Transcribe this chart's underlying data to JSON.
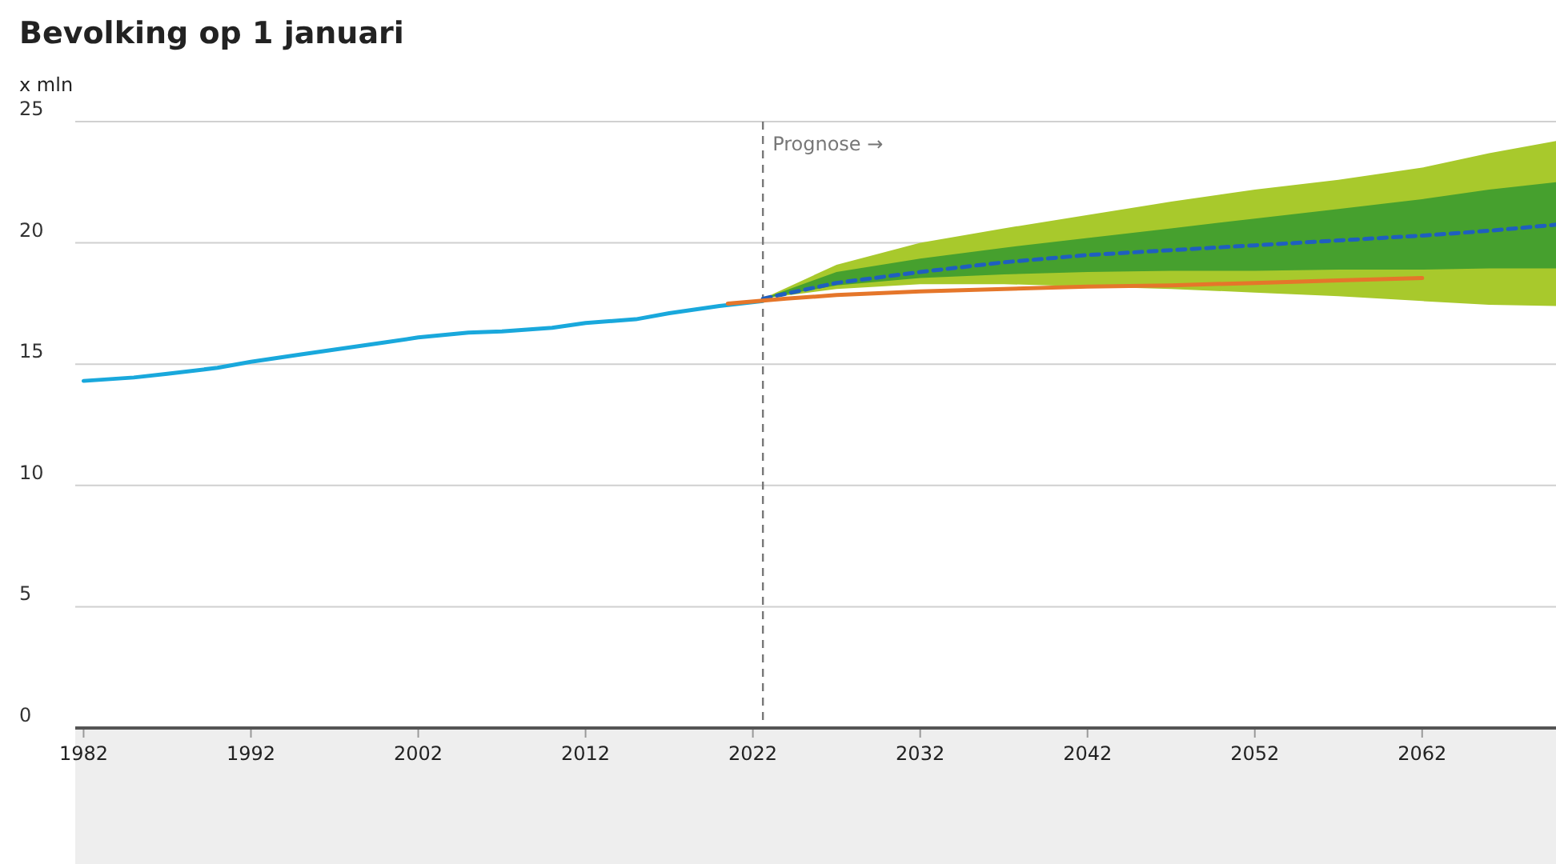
{
  "chart_data": {
    "type": "line",
    "title": "Bevolking op 1 januari",
    "ylabel": "x mln",
    "xlim": [
      1981.5,
      2070
    ],
    "xticks": [
      1982,
      1992,
      2002,
      2012,
      2022,
      2032,
      2042,
      2052,
      2062
    ],
    "ylim": [
      0,
      25
    ],
    "yticks": [
      0,
      5,
      10,
      15,
      20,
      25
    ],
    "grid": "y",
    "ref_lines": [
      {
        "axis": "x",
        "value": 2022.6,
        "label": "Prognose →",
        "color": "#777777",
        "line_style": "dashed"
      }
    ],
    "series": [
      {
        "type": "area",
        "color": "#a8c92c",
        "x": [
          2022.6,
          2027,
          2032,
          2037,
          2042,
          2047,
          2052,
          2057,
          2062,
          2066,
          2070
        ],
        "values": [
          null,
          null,
          null,
          null,
          null,
          null,
          null,
          null,
          null,
          null,
          null
        ],
        "lower": [
          17.7,
          18.1,
          18.3,
          18.3,
          18.2,
          18.1,
          17.95,
          17.8,
          17.6,
          17.45,
          17.4
        ],
        "upper": [
          17.7,
          19.1,
          20.0,
          20.6,
          21.15,
          21.7,
          22.2,
          22.6,
          23.1,
          23.7,
          24.2
        ]
      },
      {
        "type": "line",
        "color": "#1f5fbf",
        "line_style": "dashed",
        "x": [
          2022.6,
          2027,
          2032,
          2037,
          2042,
          2047,
          2052,
          2057,
          2062,
          2066,
          2070
        ],
        "values": [
          17.7,
          18.35,
          18.8,
          19.2,
          19.5,
          19.7,
          19.9,
          20.1,
          20.3,
          20.5,
          20.75
        ],
        "lower": [
          17.7,
          18.25,
          18.55,
          18.7,
          18.8,
          18.85,
          18.85,
          18.9,
          18.9,
          18.95,
          18.95
        ],
        "upper": [
          17.7,
          18.8,
          19.35,
          19.8,
          20.2,
          20.6,
          21.0,
          21.4,
          21.8,
          22.2,
          22.5
        ]
      },
      {
        "type": "line",
        "color": "#19a8dc",
        "line_style": "solid",
        "x": [
          1982,
          1985,
          1987,
          1990,
          1992,
          1995,
          1997,
          2000,
          2002,
          2005,
          2007,
          2010,
          2012,
          2015,
          2017,
          2020,
          2022.6
        ],
        "values": [
          14.31,
          14.45,
          14.6,
          14.85,
          15.1,
          15.4,
          15.6,
          15.9,
          16.1,
          16.3,
          16.35,
          16.5,
          16.7,
          16.85,
          17.1,
          17.4,
          17.6
        ]
      },
      {
        "type": "line",
        "color": "#e5762a",
        "line_style": "solid",
        "x": [
          2020.5,
          2024,
          2027,
          2032,
          2037,
          2042,
          2047,
          2052,
          2057,
          2062
        ],
        "values": [
          17.5,
          17.7,
          17.85,
          18.0,
          18.1,
          18.2,
          18.25,
          18.35,
          18.45,
          18.55
        ]
      }
    ]
  }
}
